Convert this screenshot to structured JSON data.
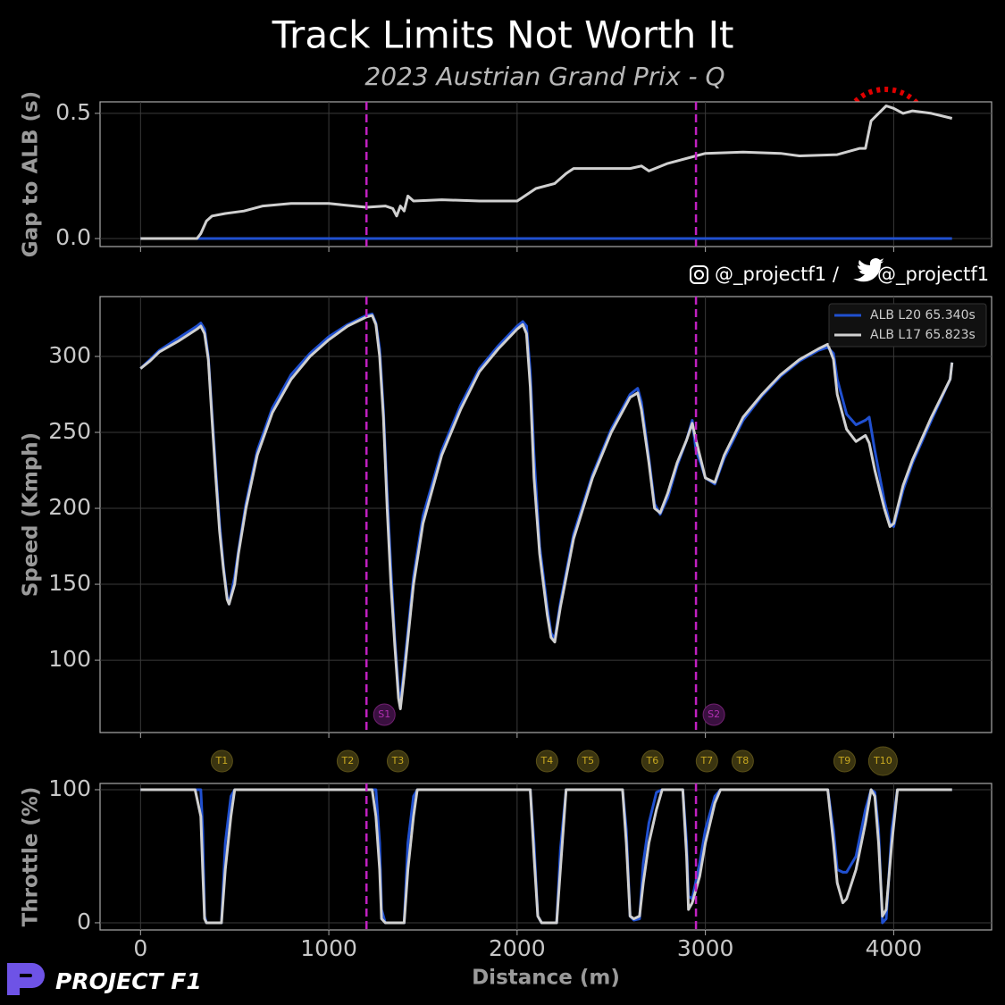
{
  "chart_data": [
    {
      "type": "line",
      "title": "Track Limits Not Worth It",
      "subtitle": "2023 Austrian Grand Prix - Q",
      "ylabel": "Gap to ALB (s)",
      "x": [
        0,
        300,
        320,
        350,
        380,
        450,
        550,
        650,
        800,
        1000,
        1200,
        1300,
        1340,
        1360,
        1380,
        1400,
        1420,
        1450,
        1600,
        1800,
        2000,
        2020,
        2100,
        2200,
        2260,
        2300,
        2400,
        2600,
        2660,
        2700,
        2800,
        2950,
        3000,
        3200,
        3400,
        3500,
        3700,
        3820,
        3850,
        3880,
        3920,
        3960,
        4000,
        4050,
        4100,
        4200,
        4310
      ],
      "series": [
        {
          "color": "#2050d0",
          "values": [
            0,
            0,
            0,
            0,
            0,
            0,
            0,
            0,
            0,
            0,
            0,
            0,
            0,
            0,
            0,
            0,
            0,
            0,
            0,
            0,
            0,
            0,
            0,
            0,
            0,
            0,
            0,
            0,
            0,
            0,
            0,
            0,
            0,
            0,
            0,
            0,
            0,
            0,
            0,
            0,
            0,
            0,
            0,
            0,
            0,
            0,
            0
          ]
        },
        {
          "color": "#d0d0d0",
          "values": [
            0,
            0,
            0.02,
            0.07,
            0.09,
            0.1,
            0.11,
            0.13,
            0.14,
            0.14,
            0.125,
            0.13,
            0.12,
            0.09,
            0.13,
            0.11,
            0.17,
            0.15,
            0.155,
            0.15,
            0.15,
            0.16,
            0.2,
            0.22,
            0.26,
            0.28,
            0.28,
            0.28,
            0.29,
            0.27,
            0.3,
            0.33,
            0.34,
            0.345,
            0.34,
            0.33,
            0.335,
            0.36,
            0.36,
            0.47,
            0.5,
            0.53,
            0.52,
            0.5,
            0.51,
            0.5,
            0.48
          ]
        }
      ],
      "xlim": [
        -215,
        4520
      ],
      "ylim": [
        -0.032,
        0.546
      ],
      "yticks": [
        {
          "value": 0,
          "label": "0.0"
        },
        0.5
      ],
      "grid": true
    },
    {
      "type": "line",
      "ylabel": "Speed (Kmph)",
      "legend": "upper right",
      "x": [
        0,
        50,
        100,
        200,
        300,
        320,
        340,
        360,
        380,
        400,
        420,
        440,
        460,
        470,
        500,
        520,
        560,
        620,
        700,
        800,
        900,
        1000,
        1100,
        1200,
        1230,
        1250,
        1270,
        1290,
        1310,
        1330,
        1350,
        1370,
        1380,
        1400,
        1450,
        1500,
        1600,
        1700,
        1800,
        1900,
        2000,
        2030,
        2050,
        2070,
        2090,
        2120,
        2160,
        2180,
        2200,
        2230,
        2300,
        2400,
        2500,
        2600,
        2640,
        2660,
        2700,
        2730,
        2760,
        2800,
        2850,
        2900,
        2930,
        2950,
        2980,
        3000,
        3050,
        3100,
        3200,
        3300,
        3400,
        3500,
        3600,
        3650,
        3680,
        3700,
        3750,
        3800,
        3850,
        3870,
        3900,
        3950,
        3980,
        4000,
        4050,
        4100,
        4200,
        4300,
        4310
      ],
      "series": [
        {
          "name": "ALB L20 65.340s",
          "color": "#2050d0",
          "values": [
            292,
            298,
            304,
            312,
            320,
            322,
            318,
            300,
            262,
            225,
            190,
            162,
            142,
            137,
            155,
            172,
            203,
            238,
            266,
            288,
            302,
            313,
            321,
            327,
            328,
            322,
            305,
            265,
            210,
            160,
            115,
            80,
            72,
            95,
            155,
            195,
            238,
            268,
            292,
            307,
            320,
            323,
            320,
            290,
            235,
            175,
            135,
            118,
            114,
            138,
            183,
            222,
            252,
            275,
            279,
            270,
            233,
            203,
            196,
            207,
            228,
            245,
            258,
            238,
            228,
            220,
            216,
            233,
            258,
            274,
            287,
            297,
            304,
            306,
            302,
            285,
            262,
            255,
            258,
            260,
            238,
            205,
            190,
            188,
            212,
            230,
            258,
            285,
            296
          ]
        },
        {
          "name": "ALB L17 65.823s",
          "color": "#d0d0d0",
          "values": [
            292,
            297,
            303,
            310,
            318,
            320,
            315,
            298,
            258,
            220,
            185,
            160,
            140,
            137,
            150,
            170,
            200,
            235,
            263,
            285,
            300,
            311,
            320,
            326,
            327,
            321,
            300,
            260,
            200,
            150,
            110,
            75,
            68,
            90,
            150,
            190,
            235,
            265,
            290,
            305,
            318,
            321,
            315,
            280,
            220,
            170,
            130,
            115,
            112,
            135,
            180,
            220,
            250,
            273,
            276,
            265,
            230,
            200,
            197,
            210,
            230,
            245,
            256,
            245,
            230,
            220,
            217,
            235,
            260,
            275,
            288,
            298,
            305,
            308,
            298,
            275,
            252,
            244,
            248,
            243,
            225,
            200,
            188,
            190,
            215,
            232,
            260,
            285,
            296
          ]
        }
      ],
      "sectors": [
        {
          "label": "S1",
          "x": 1200
        },
        {
          "label": "S2",
          "x": 2950
        }
      ],
      "xlim": [
        -215,
        4520
      ],
      "ylim": [
        52.4,
        339.4
      ],
      "yticks": [
        100,
        150,
        200,
        250,
        300
      ],
      "grid": true
    },
    {
      "type": "line",
      "ylabel": "Throttle (%)",
      "xlabel": "Distance (m)",
      "x": [
        0,
        290,
        320,
        330,
        340,
        350,
        430,
        450,
        480,
        500,
        1200,
        1230,
        1250,
        1270,
        1280,
        1300,
        1400,
        1420,
        1450,
        1470,
        2070,
        2090,
        2110,
        2130,
        2210,
        2230,
        2260,
        2560,
        2580,
        2600,
        2620,
        2650,
        2670,
        2700,
        2740,
        2770,
        2880,
        2900,
        2910,
        2930,
        2970,
        3000,
        3050,
        3080,
        3650,
        3680,
        3700,
        3730,
        3750,
        3800,
        3850,
        3880,
        3900,
        3920,
        3940,
        3960,
        3990,
        4020,
        4310
      ],
      "series": [
        {
          "color": "#2050d0",
          "values": [
            100,
            100,
            100,
            70,
            5,
            0,
            0,
            60,
            95,
            100,
            100,
            100,
            100,
            60,
            10,
            0,
            0,
            60,
            95,
            100,
            100,
            60,
            5,
            0,
            0,
            55,
            100,
            100,
            70,
            5,
            2,
            3,
            45,
            75,
            98,
            100,
            100,
            60,
            20,
            18,
            45,
            70,
            95,
            100,
            100,
            70,
            40,
            38,
            38,
            50,
            85,
            100,
            98,
            70,
            0,
            3,
            70,
            100,
            100
          ]
        },
        {
          "color": "#d0d0d0",
          "values": [
            100,
            100,
            80,
            40,
            3,
            0,
            0,
            40,
            80,
            100,
            100,
            100,
            80,
            40,
            3,
            0,
            0,
            40,
            80,
            100,
            100,
            50,
            5,
            0,
            0,
            40,
            100,
            100,
            60,
            5,
            3,
            5,
            30,
            60,
            85,
            100,
            100,
            50,
            10,
            15,
            35,
            60,
            90,
            100,
            100,
            60,
            30,
            15,
            18,
            40,
            75,
            100,
            95,
            60,
            5,
            10,
            60,
            100,
            100
          ]
        }
      ],
      "turns": [
        {
          "label": "T1",
          "x": 432
        },
        {
          "label": "T2",
          "x": 1101
        },
        {
          "label": "T3",
          "x": 1367
        },
        {
          "label": "T4",
          "x": 2159
        },
        {
          "label": "T5",
          "x": 2377
        },
        {
          "label": "T6",
          "x": 2719
        },
        {
          "label": "T7",
          "x": 3008
        },
        {
          "label": "T8",
          "x": 3198
        },
        {
          "label": "T9",
          "x": 3739
        },
        {
          "label": "T10",
          "x": 3943
        }
      ],
      "xlim": [
        -215,
        4520
      ],
      "ylim": [
        -5.4,
        104.7
      ],
      "xticks": [
        0,
        1000,
        2000,
        3000,
        4000
      ],
      "yticks": [
        0,
        100
      ],
      "grid": true
    }
  ],
  "branding": {
    "handle_instagram": "@_projectf1 /",
    "handle_twitter": "@_projectf1",
    "logo": "PROJECT F1"
  }
}
